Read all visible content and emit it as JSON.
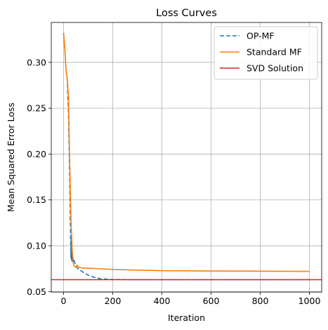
{
  "chart_data": {
    "type": "line",
    "title": "Loss Curves",
    "xlabel": "Iteration",
    "ylabel": "Mean Squared Error Loss",
    "xlim": [
      -50,
      1050
    ],
    "ylim": [
      0.0495,
      0.3435
    ],
    "xticks": [
      0,
      200,
      400,
      600,
      800,
      1000
    ],
    "yticks": [
      0.05,
      0.1,
      0.15,
      0.2,
      0.25,
      0.3
    ],
    "ytick_labels": [
      "0.05",
      "0.10",
      "0.15",
      "0.20",
      "0.25",
      "0.30"
    ],
    "xtick_labels": [
      "0",
      "200",
      "400",
      "600",
      "800",
      "1000"
    ],
    "grid": true,
    "legend_position": "top-right",
    "series": [
      {
        "name": "OP-MF",
        "style": "dashed",
        "color": "#1f77b4",
        "x": [
          0,
          5,
          10,
          15,
          20,
          25,
          28,
          30,
          31,
          32,
          33,
          35,
          38,
          40,
          42,
          45,
          50,
          55,
          60,
          70,
          80,
          100,
          120,
          150,
          180,
          200,
          250,
          300,
          400,
          600,
          800,
          1000
        ],
        "y": [
          0.332,
          0.315,
          0.292,
          0.281,
          0.245,
          0.17,
          0.12,
          0.087,
          0.11,
          0.085,
          0.093,
          0.083,
          0.088,
          0.083,
          0.085,
          0.082,
          0.078,
          0.076,
          0.075,
          0.073,
          0.071,
          0.068,
          0.066,
          0.064,
          0.0635,
          0.0632,
          0.0631,
          0.063,
          0.063,
          0.063,
          0.063,
          0.063
        ]
      },
      {
        "name": "Standard MF",
        "style": "solid",
        "color": "#ff7f0e",
        "x": [
          0,
          5,
          10,
          15,
          20,
          25,
          30,
          35,
          40,
          45,
          50,
          55,
          60,
          70,
          80,
          100,
          150,
          200,
          300,
          400,
          600,
          800,
          1000
        ],
        "y": [
          0.332,
          0.315,
          0.292,
          0.282,
          0.262,
          0.19,
          0.13,
          0.095,
          0.08,
          0.077,
          0.077,
          0.079,
          0.077,
          0.076,
          0.0758,
          0.0755,
          0.0748,
          0.0742,
          0.0735,
          0.0728,
          0.0725,
          0.0723,
          0.072
        ]
      },
      {
        "name": "SVD Solution",
        "style": "hline",
        "color": "#d62728",
        "y": 0.063
      }
    ]
  }
}
